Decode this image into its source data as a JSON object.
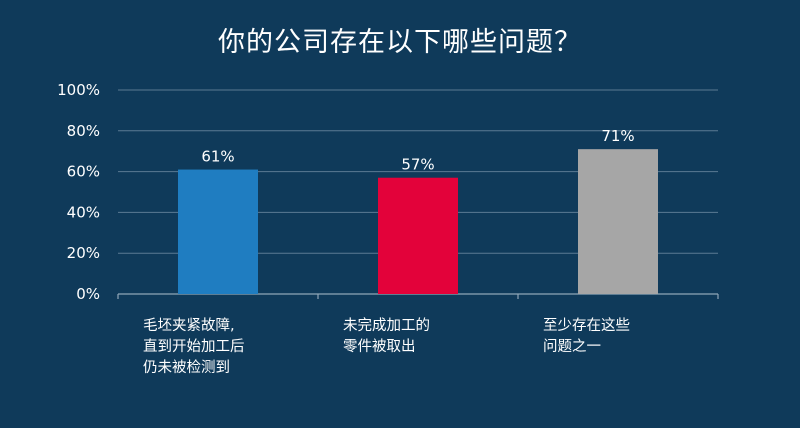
{
  "chart_data": {
    "type": "bar",
    "title": "你的公司存在以下哪些问题？",
    "xlabel": "",
    "ylabel": "",
    "ylim": [
      0,
      100
    ],
    "yticks": [
      "0%",
      "20%",
      "40%",
      "60%",
      "80%",
      "100%"
    ],
    "ytick_values": [
      0,
      20,
      40,
      60,
      80,
      100
    ],
    "grid": true,
    "legend": "none",
    "categories": [
      [
        "毛坯夹紧故障,",
        "直到开始加工后",
        "仍未被检测到"
      ],
      [
        "未完成加工的",
        "零件被取出"
      ],
      [
        "至少存在这些",
        "问题之一"
      ]
    ],
    "values": [
      61,
      57,
      71
    ],
    "value_labels": [
      "61%",
      "57%",
      "71%"
    ],
    "colors": [
      "#1f7dc1",
      "#e3023a",
      "#a6a6a6"
    ],
    "background": "#0f3a5a",
    "gridline_color": "#5b7a93"
  }
}
